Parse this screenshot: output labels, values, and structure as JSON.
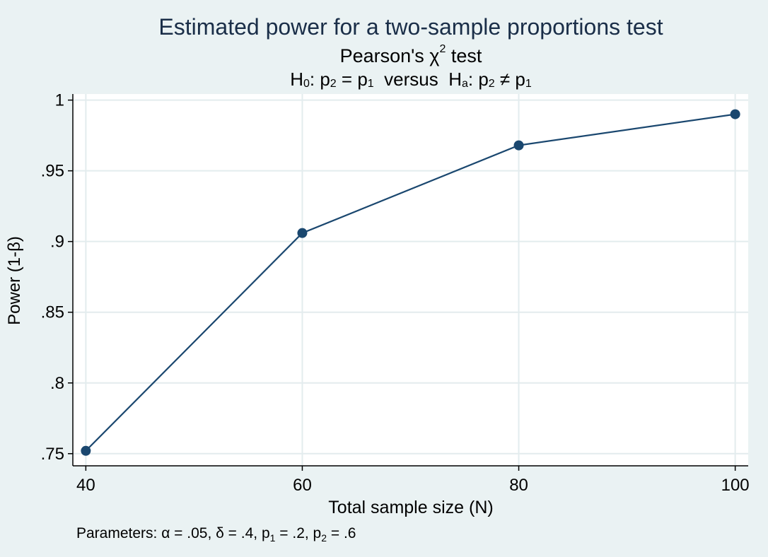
{
  "chart_data": {
    "type": "line",
    "title": "Estimated power for a two-sample proportions test",
    "subtitle_prefix": "Pearson's χ",
    "subtitle_sup": "2",
    "subtitle_suffix": " test",
    "hypothesis": {
      "h_label": "H",
      "h0_sub": "0",
      "h0_text": ": p",
      "h0_p2_sub": "2",
      "h0_eq": " = p",
      "h0_p1_sub": "1",
      "versus": "  versus  ",
      "ha_sub": "a",
      "ha_text": ": p",
      "ha_p2_sub": "2",
      "ha_neq": " ≠ p",
      "ha_p1_sub": "1"
    },
    "xlabel": "Total sample size (N)",
    "ylabel": "Power (1-β)",
    "x": [
      40,
      60,
      80,
      100
    ],
    "series": [
      {
        "values": [
          0.752,
          0.906,
          0.968,
          0.99
        ]
      }
    ],
    "xticks": [
      "40",
      "60",
      "80",
      "100"
    ],
    "xtick_values": [
      40,
      60,
      80,
      100
    ],
    "yticks": [
      "1",
      ".95",
      ".9",
      ".85",
      ".8",
      ".75"
    ],
    "ytick_values": [
      1,
      0.95,
      0.9,
      0.85,
      0.8,
      0.75
    ],
    "xlim": [
      38.8,
      101.2
    ],
    "ylim": [
      0.7414,
      1.0043
    ],
    "grid": true,
    "line_color": "#1a476f",
    "background": "#eaf2f3",
    "note": {
      "prefix": "Parameters: α = .05, δ = .4, p",
      "p1_sub": "1",
      "mid": " = .2, p",
      "p2_sub": "2",
      "suffix": " = .6"
    }
  }
}
